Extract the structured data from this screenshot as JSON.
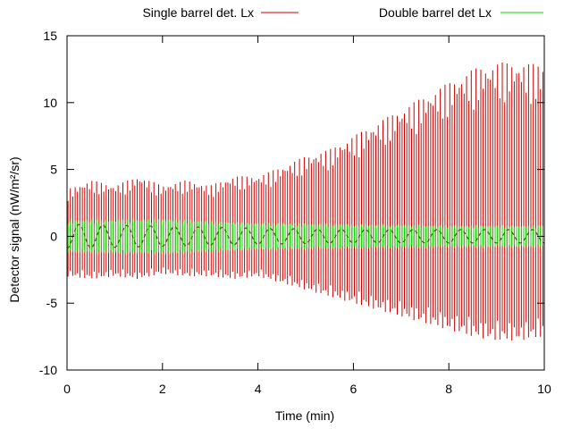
{
  "chart_data": {
    "type": "line",
    "title": "",
    "xlabel": "Time (min)",
    "ylabel": "Detector signal (nW/m²/sr)",
    "xlim": [
      0,
      10
    ],
    "ylim": [
      -10,
      15
    ],
    "x_ticks": [
      "0",
      "2",
      "4",
      "6",
      "8",
      "10"
    ],
    "y_ticks": [
      "-10",
      "-5",
      "0",
      "5",
      "10",
      "15"
    ],
    "grid": false,
    "legend_position": "top",
    "series": [
      {
        "name": "Single barrel det. Lx",
        "color": "#cc0000",
        "style": "vertical-spikes",
        "upper_envelope": {
          "x": [
            0,
            0.5,
            1,
            1.5,
            2,
            2.5,
            3,
            3.5,
            4,
            4.5,
            5,
            5.5,
            6,
            6.5,
            7,
            7.5,
            8,
            8.5,
            9,
            9.5,
            10
          ],
          "y": [
            3.5,
            4.2,
            3.8,
            4.5,
            3.8,
            4.2,
            3.8,
            4.5,
            4.5,
            5.2,
            6.0,
            6.5,
            7.5,
            8.5,
            9.5,
            10.5,
            11.5,
            12.5,
            13.0,
            13.0,
            12.8
          ]
        },
        "lower_envelope": {
          "x": [
            0,
            0.5,
            1,
            1.5,
            2,
            2.5,
            3,
            3.5,
            4,
            4.5,
            5,
            5.5,
            6,
            6.5,
            7,
            7.5,
            8,
            8.5,
            9,
            9.5,
            10
          ],
          "y": [
            -3.0,
            -3.2,
            -3.0,
            -3.2,
            -2.8,
            -3.0,
            -3.0,
            -3.2,
            -3.0,
            -3.5,
            -4.0,
            -4.5,
            -5.0,
            -5.5,
            -6.0,
            -6.5,
            -7.0,
            -7.5,
            -7.8,
            -7.8,
            -7.5
          ]
        }
      },
      {
        "name": "Double barrel det Lx",
        "color": "#00dd00",
        "style": "vertical-spikes",
        "upper_envelope": {
          "x": [
            0,
            2,
            4,
            6,
            8,
            10
          ],
          "y": [
            1.2,
            1.3,
            1.0,
            0.9,
            0.8,
            0.8
          ]
        },
        "lower_envelope": {
          "x": [
            0,
            2,
            4,
            6,
            8,
            10
          ],
          "y": [
            -1.2,
            -1.3,
            -1.0,
            -0.9,
            -0.8,
            -0.8
          ]
        }
      }
    ],
    "overlay_curve": {
      "color": "#555500",
      "style": "dashed",
      "amplitude": {
        "x": [
          0,
          4,
          6,
          8,
          10
        ],
        "y": [
          0.9,
          0.6,
          0.5,
          0.5,
          0.5
        ]
      },
      "period_min": 0.5
    }
  }
}
